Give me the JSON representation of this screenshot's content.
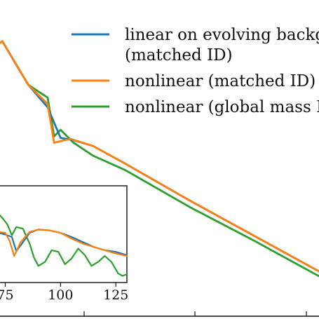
{
  "chart_data": [
    {
      "type": "line",
      "role": "main-panel",
      "legend": {
        "placement": "top-right",
        "entries": [
          {
            "series": 0,
            "lines": [
              "linear on evolving backgrou",
              "(matched ID)"
            ]
          },
          {
            "series": 1,
            "lines": [
              "nonlinear (matched ID)"
            ]
          },
          {
            "series": 2,
            "lines": [
              "nonlinear (global mass ID)"
            ]
          }
        ]
      },
      "series": [
        {
          "name": "linear on evolving background (matched ID)",
          "color": "#1f77b4",
          "x": [
            0,
            0.02,
            0.1,
            0.16,
            0.2,
            0.24,
            0.3,
            0.4,
            0.6,
            0.8,
            1.0
          ],
          "y": [
            0.84,
            0.855,
            0.72,
            0.65,
            0.555,
            0.548,
            0.53,
            0.475,
            0.36,
            0.25,
            0.14
          ]
        },
        {
          "name": "nonlinear (matched ID)",
          "color": "#ff7f0e",
          "x": [
            0,
            0.02,
            0.1,
            0.16,
            0.18,
            0.2,
            0.23,
            0.3,
            0.4,
            0.6,
            0.8,
            1.0
          ],
          "y": [
            0.84,
            0.855,
            0.72,
            0.66,
            0.54,
            0.545,
            0.552,
            0.53,
            0.475,
            0.36,
            0.25,
            0.14
          ]
        },
        {
          "name": "nonlinear (global mass ID)",
          "color": "#2ca02c",
          "x": [
            0,
            0.02,
            0.1,
            0.16,
            0.18,
            0.2,
            0.24,
            0.3,
            0.4,
            0.6,
            0.8,
            1.0
          ],
          "y": [
            0.84,
            0.855,
            0.72,
            0.68,
            0.56,
            0.58,
            0.54,
            0.5,
            0.455,
            0.34,
            0.235,
            0.125
          ]
        }
      ]
    },
    {
      "type": "line",
      "role": "inset",
      "x_ticks": [
        "75",
        "100",
        "125"
      ],
      "xlim": [
        72,
        130
      ],
      "series": [
        {
          "name": "linear on evolving background (matched ID)",
          "color": "#1f77b4",
          "x": [
            72,
            75,
            78,
            80,
            82,
            86,
            90,
            95,
            100,
            105,
            110,
            115,
            120,
            125,
            130
          ],
          "y": [
            0.55,
            0.53,
            0.5,
            0.33,
            0.4,
            0.55,
            0.59,
            0.58,
            0.55,
            0.5,
            0.44,
            0.38,
            0.34,
            0.32,
            0.28
          ]
        },
        {
          "name": "nonlinear (matched ID)",
          "color": "#ff7f0e",
          "x": [
            72,
            75,
            77,
            79,
            82,
            86,
            90,
            95,
            100,
            105,
            110,
            115,
            120,
            125,
            130
          ],
          "y": [
            0.56,
            0.55,
            0.45,
            0.27,
            0.44,
            0.56,
            0.59,
            0.58,
            0.55,
            0.48,
            0.42,
            0.38,
            0.34,
            0.3,
            0.27
          ]
        },
        {
          "name": "nonlinear (global mass ID)",
          "color": "#2ca02c",
          "x": [
            72,
            74,
            76,
            78,
            80,
            83,
            86,
            88,
            90,
            93,
            96,
            99,
            102,
            105,
            108,
            111,
            114,
            117,
            120,
            123,
            126,
            128,
            130
          ],
          "y": [
            0.78,
            0.72,
            0.65,
            0.52,
            0.62,
            0.6,
            0.42,
            0.25,
            0.15,
            0.2,
            0.34,
            0.32,
            0.17,
            0.24,
            0.36,
            0.28,
            0.15,
            0.2,
            0.27,
            0.2,
            0.06,
            0.03,
            0.05
          ]
        }
      ]
    }
  ]
}
